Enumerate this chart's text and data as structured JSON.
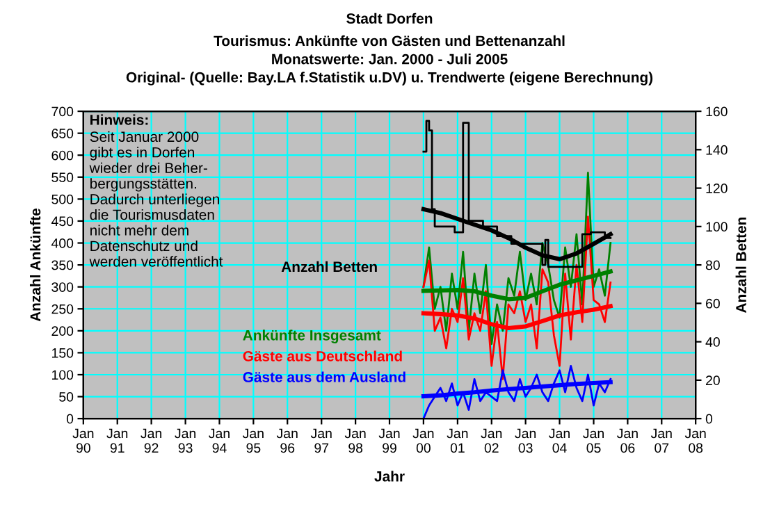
{
  "chart_data": {
    "type": "line",
    "title": "Stadt Dorfen",
    "subtitle": "Tourismus: Ankünfte von Gästen und Bettenanzahl\nMonatswerte: Jan. 2000 - Juli 2005\nOriginal- (Quelle: Bay.LA f.Statistik u.DV) u. Trendwerte (eigene Berechnung)",
    "xlabel": "Jahr",
    "ylabel": "Anzahl Ankünfte",
    "y2label": "Anzahl Betten",
    "annotations": [
      "Hinweis:",
      "Seit Januar 2000\ngibt es in Dorfen\nwieder drei Beher-\nbergungsstätten.\nDadurch unterliegen\ndie Tourismusdaten\nnicht mehr dem\nDatenschutz und\nwerden veröffentlicht"
    ],
    "xlim": [
      "1990-01",
      "2008-01"
    ],
    "xticks": [
      {
        "value": "1990-01",
        "label": "Jan\n90"
      },
      {
        "value": "1991-01",
        "label": "Jan\n91"
      },
      {
        "value": "1992-01",
        "label": "Jan\n92"
      },
      {
        "value": "1993-01",
        "label": "Jan\n93"
      },
      {
        "value": "1994-01",
        "label": "Jan\n94"
      },
      {
        "value": "1995-01",
        "label": "Jan\n95"
      },
      {
        "value": "1996-01",
        "label": "Jan\n96"
      },
      {
        "value": "1997-01",
        "label": "Jan\n97"
      },
      {
        "value": "1998-01",
        "label": "Jan\n98"
      },
      {
        "value": "1999-01",
        "label": "Jan\n99"
      },
      {
        "value": "2000-01",
        "label": "Jan\n00"
      },
      {
        "value": "2001-01",
        "label": "Jan\n01"
      },
      {
        "value": "2002-01",
        "label": "Jan\n02"
      },
      {
        "value": "2003-01",
        "label": "Jan\n03"
      },
      {
        "value": "2004-01",
        "label": "Jan\n04"
      },
      {
        "value": "2005-01",
        "label": "Jan\n05"
      },
      {
        "value": "2006-01",
        "label": "Jan\n06"
      },
      {
        "value": "2007-01",
        "label": "Jan\n07"
      },
      {
        "value": "2008-01",
        "label": "Jan\n08"
      }
    ],
    "ylim": [
      0,
      700
    ],
    "yticks": [
      0,
      50,
      100,
      150,
      200,
      250,
      300,
      350,
      400,
      450,
      500,
      550,
      600,
      650,
      700
    ],
    "y2lim": [
      0,
      160
    ],
    "y2ticks": [
      0,
      20,
      40,
      60,
      80,
      100,
      120,
      140,
      160
    ],
    "grid": true,
    "series": [
      {
        "name": "Anzahl Betten",
        "type": "step",
        "axis": "y2",
        "color": "#000000",
        "x": [
          "2000-01",
          "2000-02",
          "2000-03",
          "2000-04",
          "2000-05",
          "2000-12",
          "2001-03",
          "2001-05",
          "2001-10",
          "2002-03",
          "2002-08",
          "2003-07",
          "2003-08",
          "2003-09",
          "2004-09",
          "2004-12",
          "2005-05",
          "2005-07"
        ],
        "values": [
          139,
          155,
          150,
          109,
          100,
          97,
          154,
          103,
          100,
          95,
          91,
          80,
          93,
          79,
          96,
          97,
          94,
          94
        ]
      },
      {
        "axis": "y2",
        "color": "#000000",
        "x": [
          "2000-01",
          "2000-07",
          "2001-01",
          "2001-07",
          "2002-01",
          "2002-07",
          "2003-01",
          "2003-07",
          "2004-01",
          "2004-07",
          "2005-01",
          "2005-07"
        ],
        "values": [
          109,
          107,
          104,
          101,
          98,
          94,
          89,
          85,
          83,
          86,
          91,
          96
        ]
      },
      {
        "name": "Ankünfte Insgesamt",
        "color": "#008000",
        "x": [
          "2000-01",
          "2000-03",
          "2000-05",
          "2000-07",
          "2000-09",
          "2000-11",
          "2001-01",
          "2001-03",
          "2001-05",
          "2001-07",
          "2001-09",
          "2001-11",
          "2002-01",
          "2002-03",
          "2002-05",
          "2002-07",
          "2002-09",
          "2002-11",
          "2003-01",
          "2003-03",
          "2003-05",
          "2003-07",
          "2003-09",
          "2003-11",
          "2004-01",
          "2004-03",
          "2004-05",
          "2004-07",
          "2004-09",
          "2004-11",
          "2005-01",
          "2005-03",
          "2005-05",
          "2005-07"
        ],
        "values": [
          300,
          390,
          250,
          300,
          200,
          330,
          250,
          380,
          200,
          330,
          240,
          350,
          170,
          260,
          200,
          320,
          280,
          380,
          270,
          330,
          260,
          400,
          350,
          270,
          230,
          390,
          300,
          420,
          260,
          560,
          300,
          340,
          280,
          400
        ]
      },
      {
        "name": "Gäste aus Deutschland",
        "color": "#ff0000",
        "x": [
          "2000-01",
          "2000-03",
          "2000-05",
          "2000-07",
          "2000-09",
          "2000-11",
          "2001-01",
          "2001-03",
          "2001-05",
          "2001-07",
          "2001-09",
          "2001-11",
          "2002-01",
          "2002-03",
          "2002-05",
          "2002-07",
          "2002-09",
          "2002-11",
          "2003-01",
          "2003-03",
          "2003-05",
          "2003-07",
          "2003-09",
          "2003-11",
          "2004-01",
          "2004-03",
          "2004-05",
          "2004-07",
          "2004-09",
          "2004-11",
          "2005-01",
          "2005-03",
          "2005-05",
          "2005-07"
        ],
        "values": [
          300,
          360,
          200,
          230,
          160,
          250,
          220,
          320,
          180,
          240,
          200,
          290,
          120,
          220,
          90,
          260,
          240,
          290,
          220,
          260,
          160,
          340,
          310,
          190,
          120,
          330,
          180,
          350,
          220,
          460,
          270,
          260,
          220,
          310
        ]
      },
      {
        "name": "Gäste aus dem Ausland",
        "color": "#0000ff",
        "x": [
          "2000-01",
          "2000-03",
          "2000-05",
          "2000-07",
          "2000-09",
          "2000-11",
          "2001-01",
          "2001-03",
          "2001-05",
          "2001-07",
          "2001-09",
          "2001-11",
          "2002-01",
          "2002-03",
          "2002-05",
          "2002-07",
          "2002-09",
          "2002-11",
          "2003-01",
          "2003-03",
          "2003-05",
          "2003-07",
          "2003-09",
          "2003-11",
          "2004-01",
          "2004-03",
          "2004-05",
          "2004-07",
          "2004-09",
          "2004-11",
          "2005-01",
          "2005-03",
          "2005-05",
          "2005-07"
        ],
        "values": [
          0,
          30,
          50,
          70,
          40,
          80,
          30,
          60,
          20,
          90,
          40,
          60,
          50,
          40,
          110,
          60,
          40,
          90,
          50,
          70,
          100,
          60,
          40,
          80,
          110,
          60,
          120,
          70,
          40,
          100,
          30,
          80,
          60,
          90
        ]
      },
      {
        "color": "#008000",
        "x": [
          "2000-01",
          "2000-07",
          "2001-01",
          "2001-07",
          "2002-01",
          "2002-07",
          "2003-01",
          "2003-07",
          "2004-01",
          "2004-07",
          "2005-01",
          "2005-07"
        ],
        "values": [
          291,
          292,
          293,
          290,
          280,
          272,
          275,
          290,
          305,
          315,
          325,
          335
        ]
      },
      {
        "color": "#ff0000",
        "x": [
          "2000-01",
          "2000-07",
          "2001-01",
          "2001-07",
          "2002-01",
          "2002-07",
          "2003-01",
          "2003-07",
          "2004-01",
          "2004-07",
          "2005-01",
          "2005-07"
        ],
        "values": [
          240,
          238,
          235,
          228,
          215,
          206,
          210,
          222,
          235,
          242,
          248,
          256
        ]
      },
      {
        "color": "#0000ff",
        "x": [
          "2000-01",
          "2000-07",
          "2001-01",
          "2001-07",
          "2002-01",
          "2002-07",
          "2003-01",
          "2003-07",
          "2004-01",
          "2004-07",
          "2005-01",
          "2005-07"
        ],
        "values": [
          51,
          53,
          57,
          60,
          64,
          67,
          70,
          73,
          76,
          79,
          81,
          83
        ]
      }
    ]
  }
}
